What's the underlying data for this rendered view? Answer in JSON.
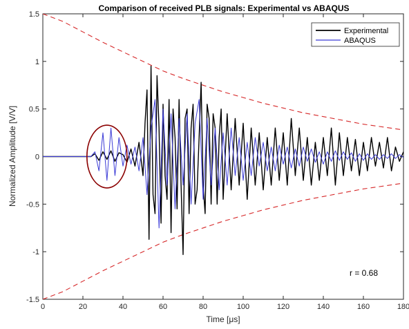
{
  "chart_data": {
    "type": "line",
    "title": "Comparison of received PLB signals: Experimental vs ABAQUS",
    "xlabel": "Time [",
    "xlabel_unit": "μs",
    "xlabel_close": "]",
    "ylabel": "Normalized Amplitude [V/V]",
    "xlim": [
      0,
      180
    ],
    "ylim": [
      -1.5,
      1.5
    ],
    "xticks": [
      0,
      20,
      40,
      60,
      80,
      100,
      120,
      140,
      160,
      180
    ],
    "yticks": [
      -1.5,
      -1,
      -0.5,
      0,
      0.5,
      1,
      1.5
    ],
    "ytick_labels": [
      "-1.5",
      "-1",
      "-0.5",
      "0",
      "0.5",
      "1",
      "1.5"
    ],
    "grid": false,
    "legend_position": "top-right",
    "series": [
      {
        "name": "Experimental",
        "color": "#000000",
        "x": [
          0,
          24,
          26,
          28,
          30,
          32,
          34,
          36,
          38,
          40,
          42,
          44,
          46,
          48,
          50,
          51,
          52,
          53,
          54,
          55,
          56,
          57,
          58,
          59,
          60,
          61,
          62,
          63,
          64,
          65,
          66,
          67,
          68,
          69,
          70,
          71,
          72,
          73,
          74,
          75,
          76,
          77,
          78,
          79,
          80,
          81,
          82,
          83,
          84,
          85,
          86,
          87,
          88,
          89,
          90,
          92,
          94,
          96,
          98,
          100,
          102,
          104,
          106,
          108,
          110,
          112,
          114,
          116,
          118,
          120,
          122,
          124,
          126,
          128,
          130,
          132,
          134,
          136,
          138,
          140,
          142,
          144,
          146,
          148,
          150,
          152,
          154,
          156,
          158,
          160,
          162,
          164,
          166,
          168,
          170,
          172,
          174,
          176,
          178,
          180
        ],
        "values": [
          0,
          0,
          0.03,
          -0.04,
          0.05,
          -0.03,
          0.06,
          -0.05,
          0.04,
          0.02,
          -0.06,
          0.08,
          -0.1,
          0.15,
          -0.2,
          0.35,
          0.7,
          -0.87,
          0.95,
          -0.4,
          -0.6,
          0.85,
          0.3,
          -0.7,
          0.55,
          -0.2,
          -0.45,
          0.6,
          -0.8,
          0.5,
          0.2,
          -0.55,
          0.6,
          -0.3,
          -1.03,
          0.4,
          0.5,
          -0.6,
          0.3,
          0.55,
          -0.5,
          -0.35,
          0.2,
          0.78,
          -0.3,
          -0.6,
          0.55,
          0.4,
          -0.5,
          0.45,
          0.3,
          -0.5,
          0.2,
          0.5,
          -0.45,
          0.45,
          -0.35,
          0.4,
          -0.3,
          0.35,
          -0.45,
          0.3,
          -0.3,
          0.25,
          -0.35,
          0.2,
          -0.3,
          0.3,
          -0.25,
          0.25,
          -0.3,
          0.4,
          -0.2,
          0.3,
          -0.25,
          0.2,
          -0.3,
          0.15,
          -0.25,
          0.2,
          -0.2,
          0.3,
          -0.3,
          0.25,
          -0.2,
          0.2,
          -0.15,
          0.18,
          -0.2,
          0.15,
          -0.15,
          0.2,
          -0.1,
          0.15,
          -0.12,
          0.2,
          -0.15,
          0.1,
          -0.05,
          0.05
        ]
      },
      {
        "name": "ABAQUS",
        "color": "#3a3ad6",
        "x": [
          0,
          24,
          26,
          28,
          30,
          32,
          34,
          36,
          38,
          40,
          42,
          44,
          46,
          48,
          50,
          52,
          54,
          56,
          58,
          60,
          62,
          64,
          66,
          68,
          70,
          72,
          74,
          76,
          78,
          80,
          82,
          84,
          86,
          88,
          90,
          92,
          94,
          96,
          98,
          100,
          102,
          104,
          106,
          108,
          110,
          112,
          114,
          116,
          118,
          120,
          122,
          124,
          126,
          128,
          130,
          132,
          134,
          136,
          138,
          140,
          142,
          144,
          146,
          148,
          150,
          152,
          154,
          156,
          158,
          160,
          162,
          164,
          166,
          168,
          170,
          172,
          174,
          176,
          178,
          180
        ],
        "values": [
          0,
          0,
          0.05,
          -0.15,
          0.25,
          -0.25,
          0.3,
          -0.2,
          0.2,
          -0.1,
          0.12,
          -0.08,
          0.1,
          -0.15,
          0.2,
          -0.4,
          0.3,
          0.6,
          -0.75,
          0.5,
          -0.3,
          0.45,
          -0.55,
          0.4,
          -0.3,
          0.45,
          -0.5,
          0.35,
          0.6,
          -0.45,
          0.4,
          -0.3,
          0.3,
          -0.35,
          0.25,
          -0.3,
          0.3,
          -0.2,
          0.2,
          -0.25,
          0.15,
          -0.2,
          0.2,
          -0.1,
          0.15,
          -0.15,
          0.1,
          -0.15,
          0.12,
          -0.08,
          0.1,
          -0.12,
          0.08,
          -0.1,
          0.1,
          -0.05,
          0.08,
          -0.06,
          0.05,
          -0.08,
          0.05,
          -0.05,
          0.06,
          -0.04,
          0.05,
          -0.03,
          0.04,
          -0.05,
          0.03,
          -0.04,
          0.03,
          -0.03,
          0.02,
          -0.03,
          0.02,
          -0.02,
          0.03,
          -0.02,
          0.02,
          -0.01
        ]
      }
    ],
    "envelope": {
      "color": "#d62728",
      "style": "dashed",
      "x": [
        0,
        10,
        20,
        30,
        40,
        50,
        60,
        70,
        80,
        90,
        100,
        110,
        120,
        130,
        140,
        150,
        160,
        170,
        180
      ],
      "upper": [
        1.5,
        1.42,
        1.31,
        1.2,
        1.1,
        1.0,
        0.9,
        0.82,
        0.75,
        0.68,
        0.62,
        0.56,
        0.51,
        0.46,
        0.42,
        0.38,
        0.34,
        0.31,
        0.28
      ],
      "lower": [
        -1.5,
        -1.42,
        -1.31,
        -1.2,
        -1.1,
        -1.0,
        -0.9,
        -0.82,
        -0.75,
        -0.68,
        -0.62,
        -0.56,
        -0.51,
        -0.46,
        -0.42,
        -0.38,
        -0.34,
        -0.31,
        -0.28
      ]
    },
    "highlight_ellipse": {
      "color": "#8b0000",
      "center_x": 32,
      "center_y": 0,
      "radius_x": 10,
      "radius_y": 0.33
    },
    "annotation": "r = 0.68"
  }
}
